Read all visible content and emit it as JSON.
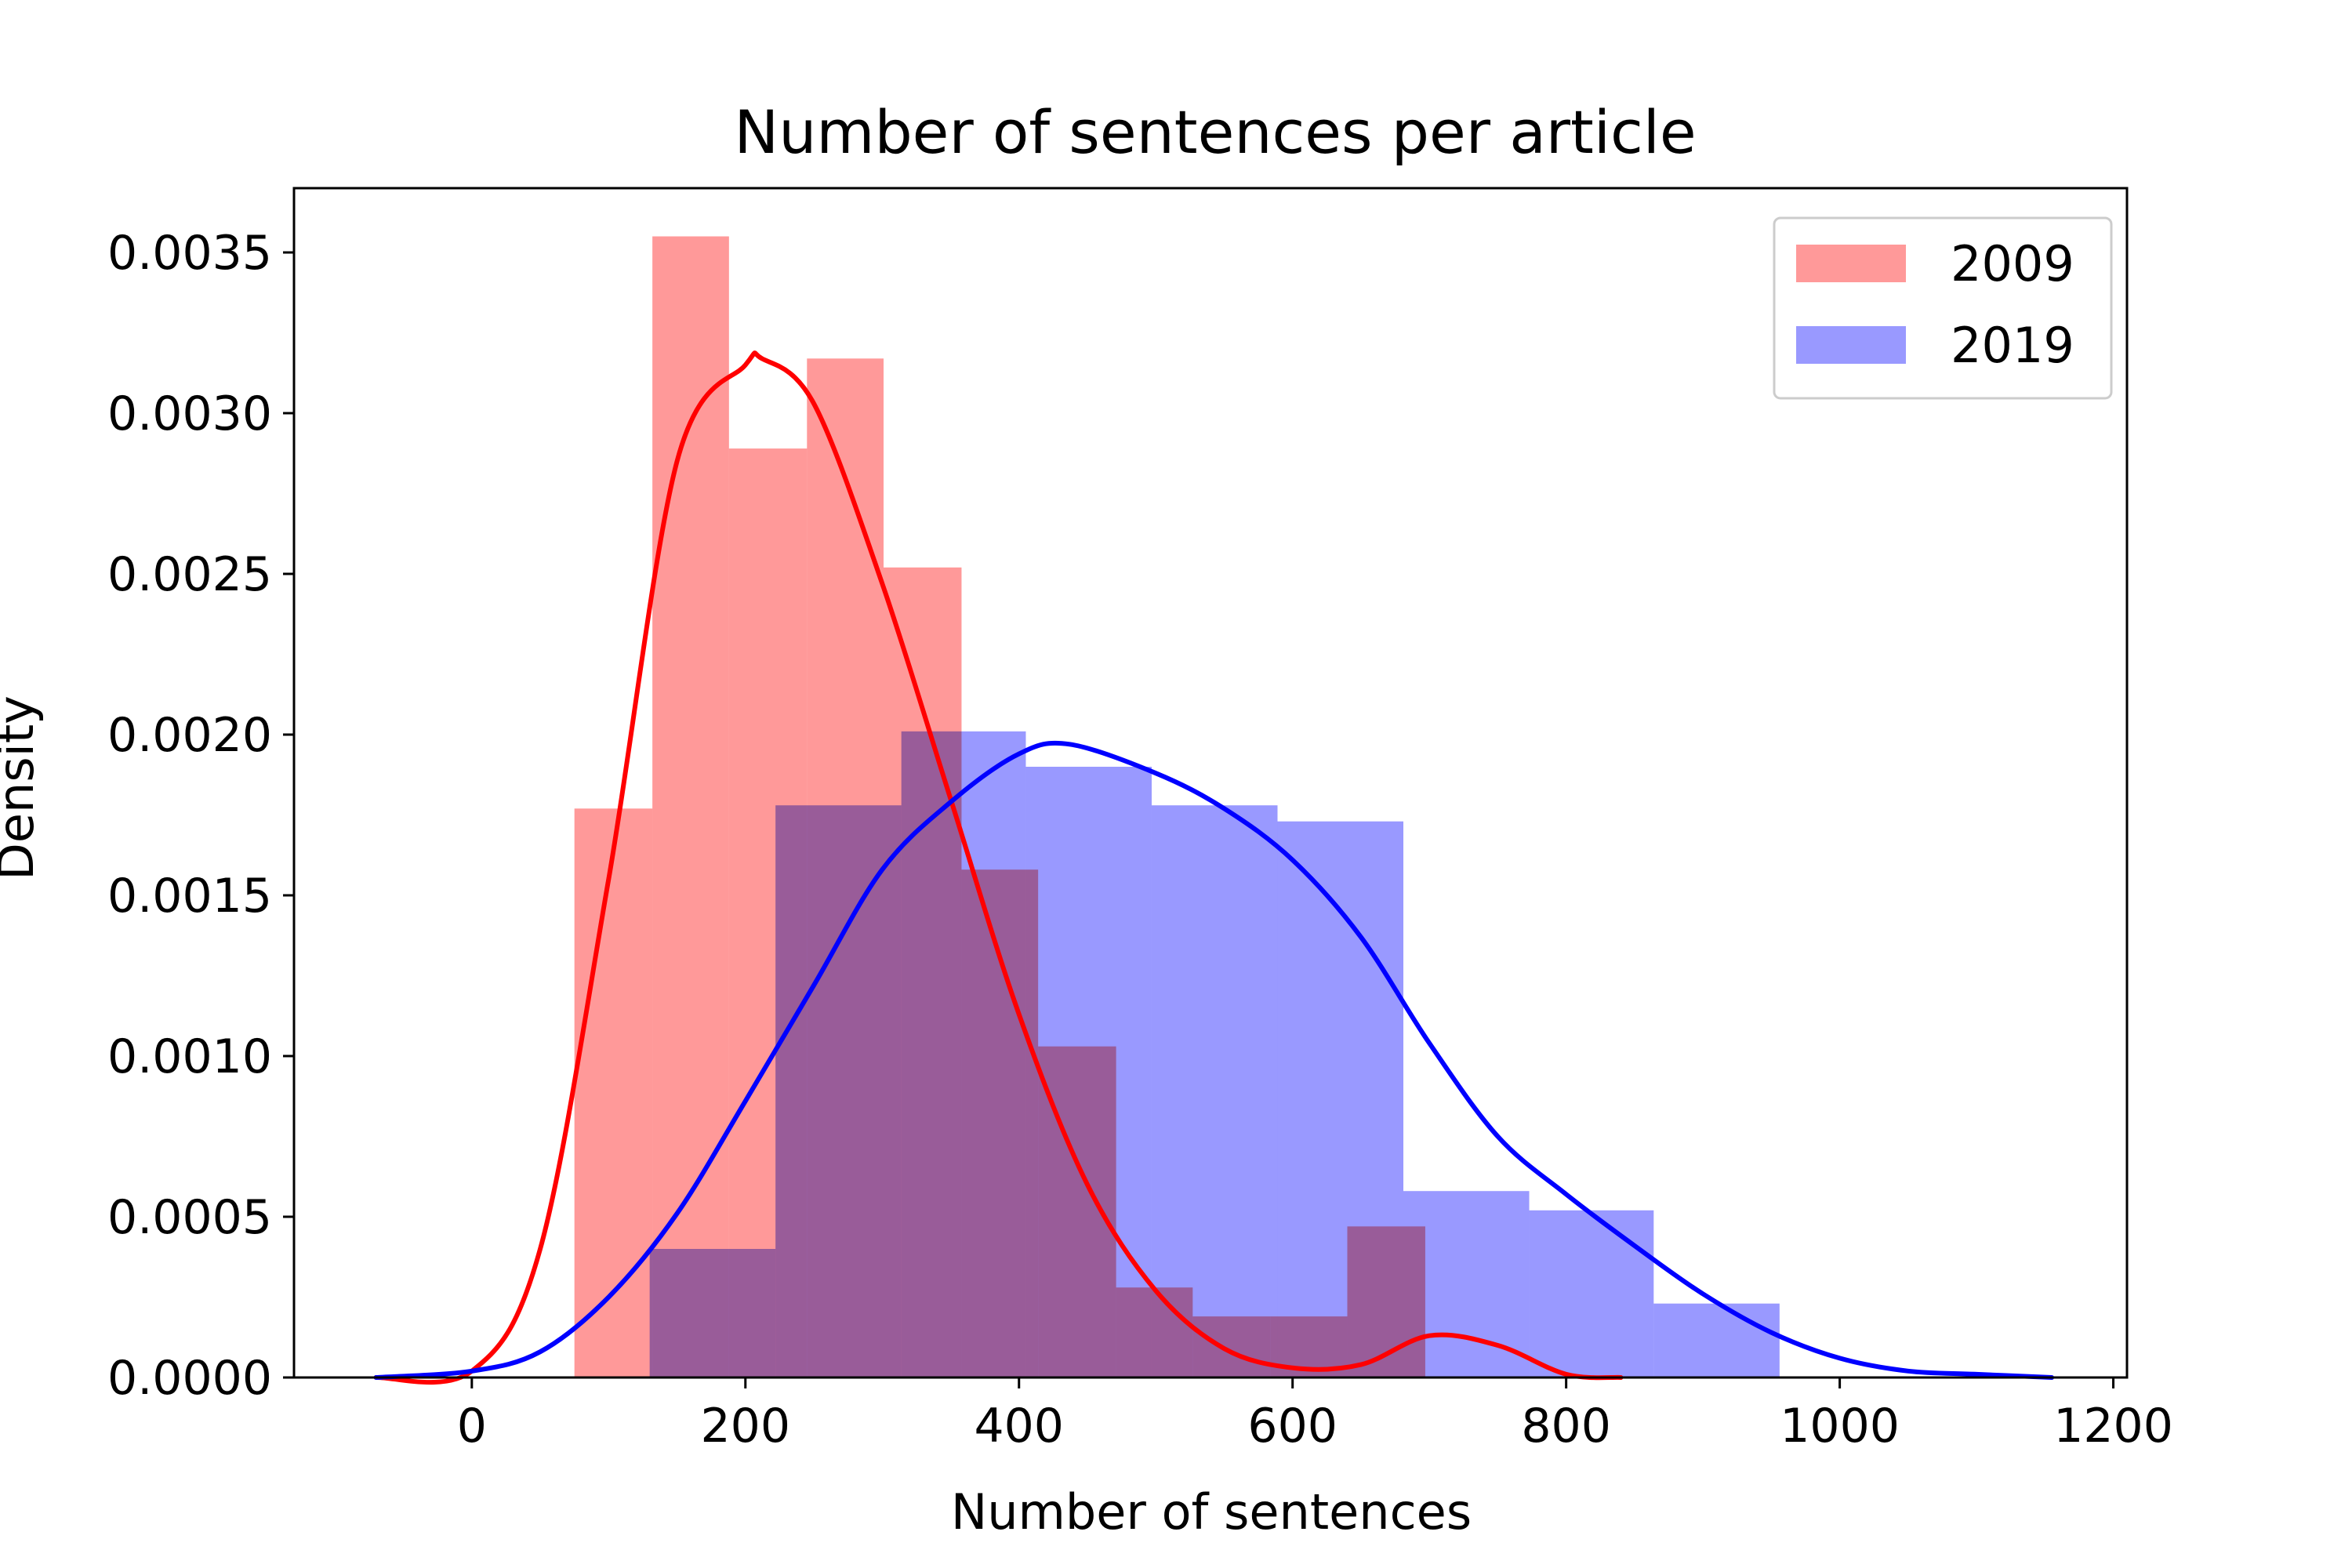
{
  "chart_data": {
    "type": "histogram",
    "title": "Number of sentences per article",
    "xlabel": "Number of sentences",
    "ylabel": "Density",
    "xlim": [
      -130,
      1210
    ],
    "ylim": [
      0,
      0.0037
    ],
    "xticks": [
      0,
      200,
      400,
      600,
      800,
      1000,
      1200
    ],
    "yticks": [
      0,
      0.0005,
      0.001,
      0.0015,
      0.002,
      0.0025,
      0.003,
      0.0035
    ],
    "xtick_labels": [
      "0",
      "200",
      "400",
      "600",
      "800",
      "1000",
      "1200"
    ],
    "ytick_labels": [
      "0.0000",
      "0.0005",
      "0.0010",
      "0.0015",
      "0.0020",
      "0.0025",
      "0.0030",
      "0.0035"
    ],
    "grid": false,
    "legend_position": "top-right",
    "series": [
      {
        "name": "2009",
        "color": "#ff0000",
        "bar_color": "#ff9999",
        "bin_edges": [
          75,
          132,
          188,
          245,
          301,
          358,
          414,
          471,
          527,
          584,
          640,
          697
        ],
        "densities": [
          0.00177,
          0.00355,
          0.00289,
          0.00317,
          0.00252,
          0.00158,
          0.00103,
          0.00028,
          0.00019,
          0.00019,
          0.00047
        ],
        "kde": {
          "x": [
            -70,
            0,
            50,
            100,
            150,
            200,
            212,
            250,
            300,
            350,
            400,
            450,
            500,
            550,
            600,
            650,
            700,
            750,
            800,
            840
          ],
          "y": [
            0.0,
            2e-05,
            0.0004,
            0.00155,
            0.00285,
            0.00315,
            0.00317,
            0.00303,
            0.00247,
            0.0018,
            0.00113,
            0.0006,
            0.00027,
            9e-05,
            3e-05,
            4e-05,
            0.00013,
            0.0001,
            1e-05,
            0.0
          ]
        }
      },
      {
        "name": "2019",
        "color": "#0000ff",
        "bar_color": "#9999ff",
        "bin_edges": [
          130,
          222,
          314,
          405,
          497,
          589,
          681,
          773,
          864,
          956
        ],
        "densities": [
          0.0004,
          0.00178,
          0.00201,
          0.0019,
          0.00178,
          0.00173,
          0.00058,
          0.00052,
          0.00023
        ],
        "kde": {
          "x": [
            -70,
            0,
            50,
            100,
            150,
            200,
            250,
            300,
            350,
            400,
            437,
            500,
            550,
            600,
            650,
            700,
            750,
            800,
            850,
            900,
            950,
            1000,
            1050,
            1100,
            1155
          ],
          "y": [
            0.0,
            2e-05,
            8e-05,
            0.00025,
            0.00051,
            0.00086,
            0.00122,
            0.00158,
            0.00179,
            0.00194,
            0.00197,
            0.00188,
            0.00177,
            0.00161,
            0.00137,
            0.00104,
            0.00075,
            0.00057,
            0.00041,
            0.00026,
            0.00014,
            6e-05,
            2e-05,
            1e-05,
            0.0
          ]
        }
      }
    ]
  }
}
